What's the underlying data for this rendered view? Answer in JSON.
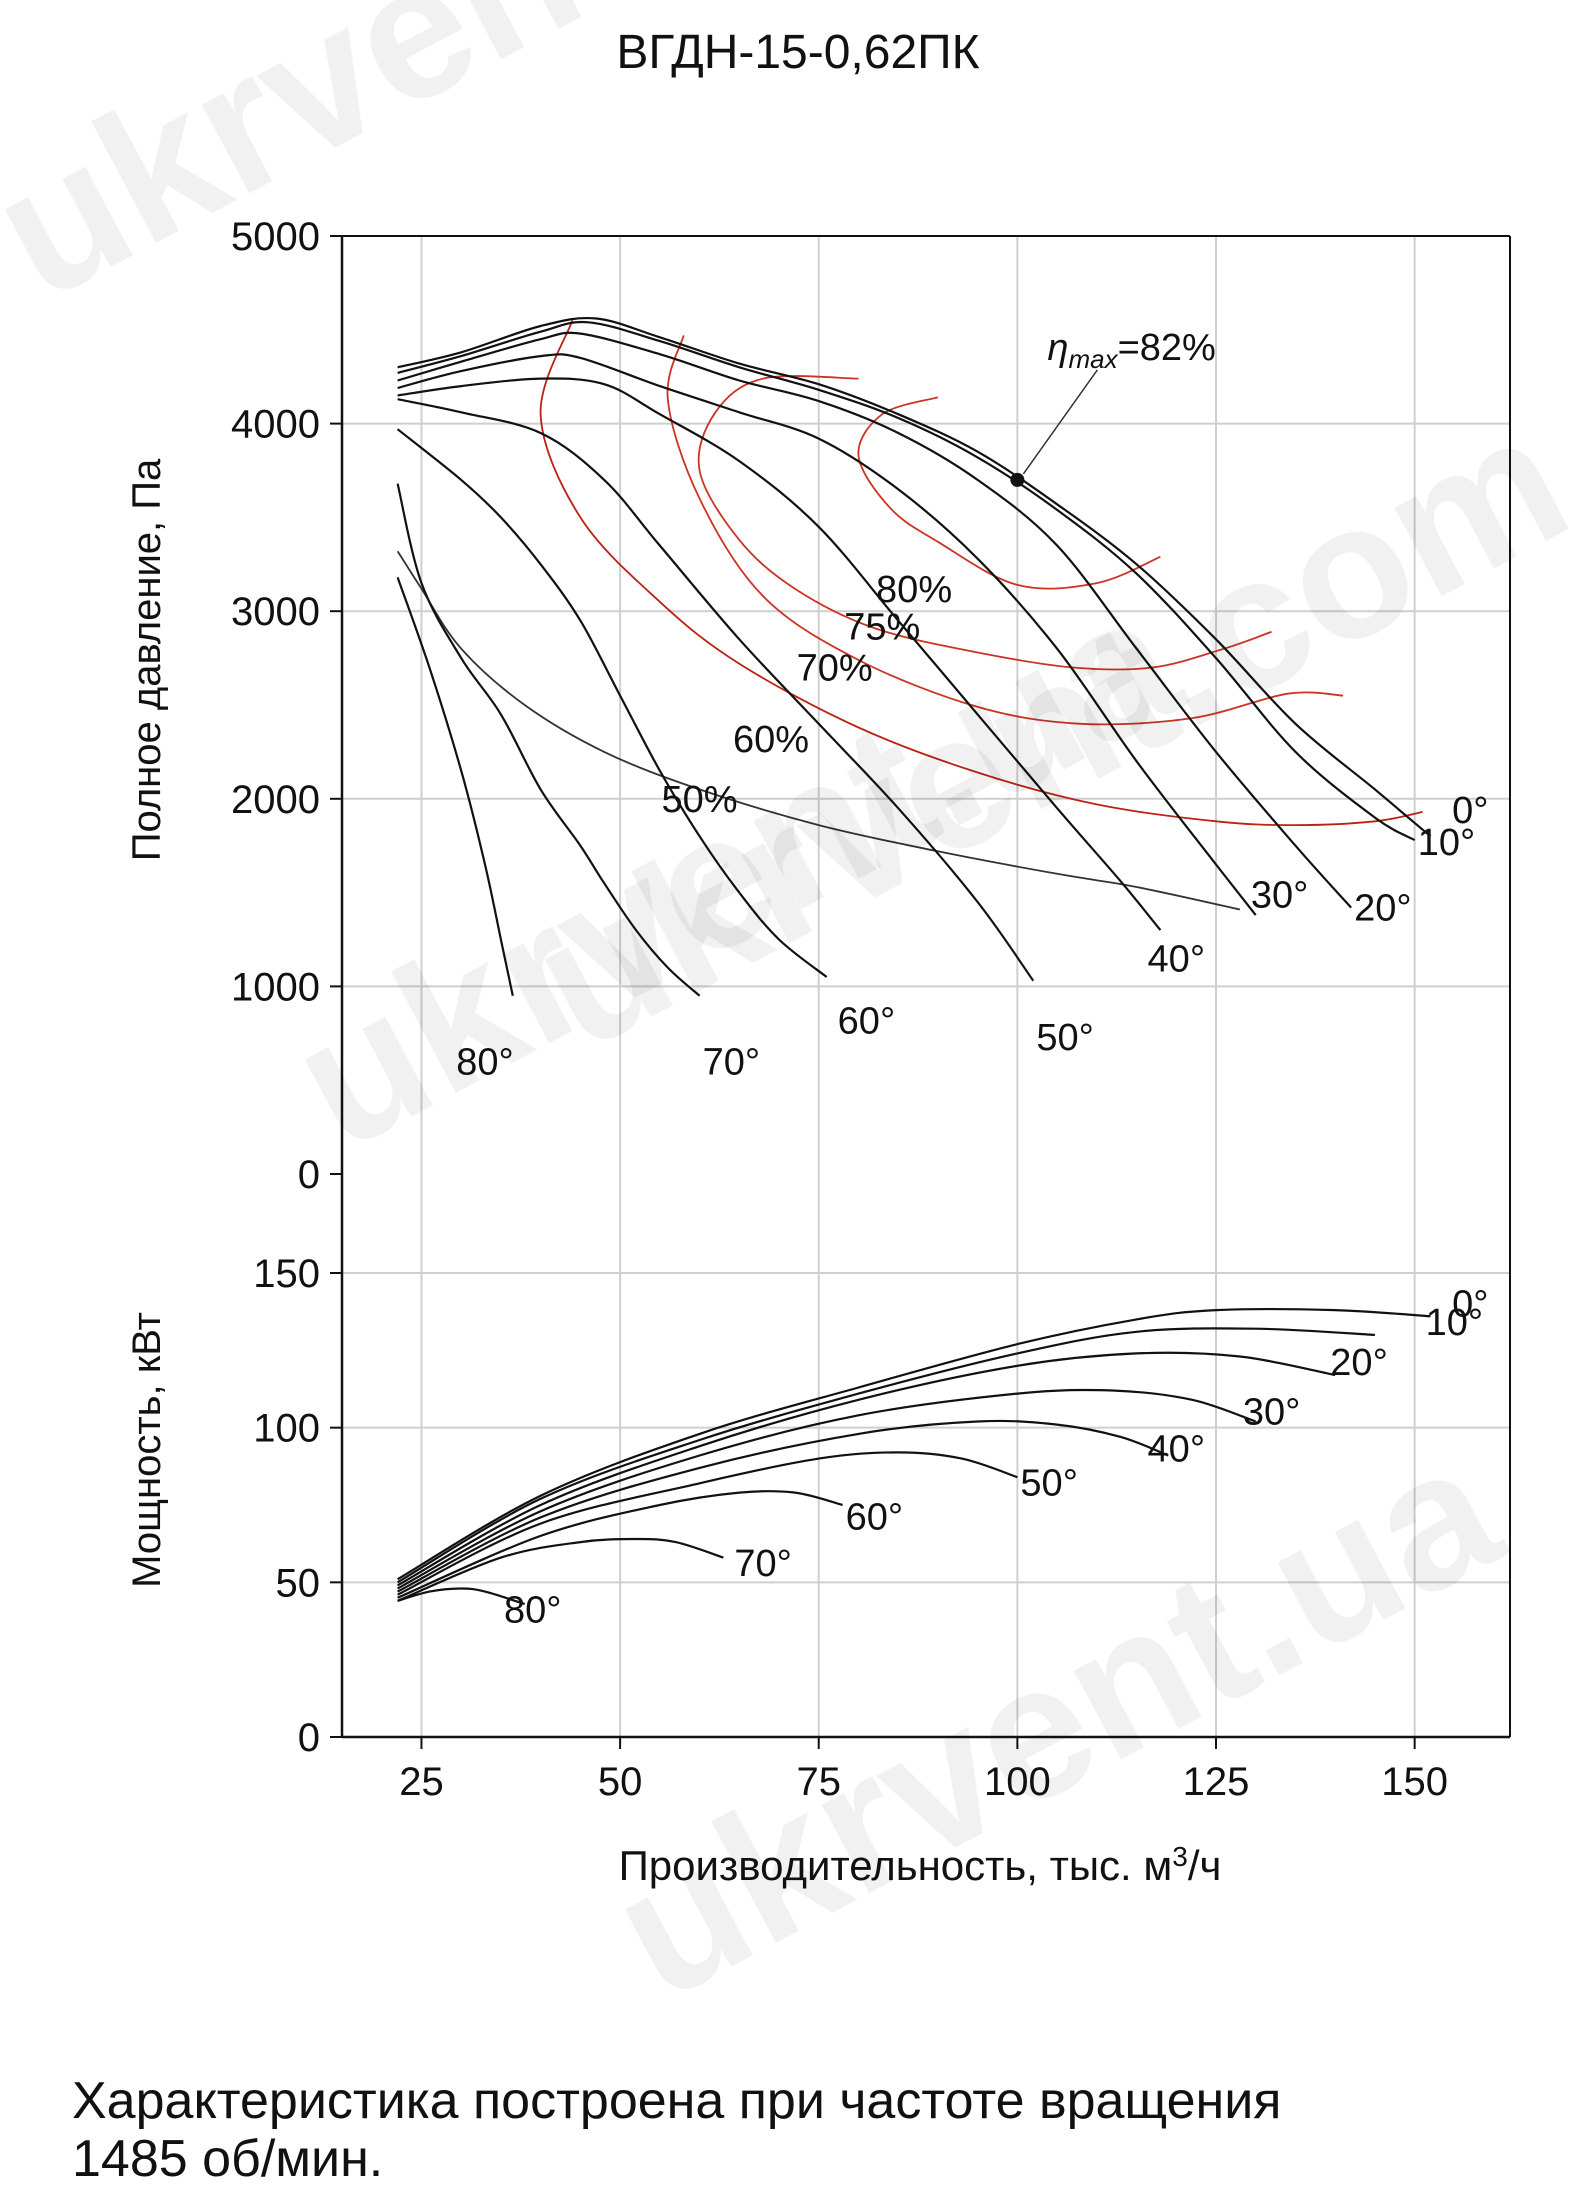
{
  "chart_data": [
    {
      "type": "line",
      "title": "ВГДН-15-0,62ПК",
      "ylabel": "Полное давление, Па",
      "xlim": [
        15,
        162
      ],
      "ylim": [
        0,
        5000
      ],
      "xticks": [
        25,
        50,
        75,
        100,
        125,
        150
      ],
      "yticks": [
        0,
        1000,
        2000,
        3000,
        4000,
        5000
      ],
      "grid": true,
      "annotation": {
        "label": "ηmax=82%",
        "point": [
          100,
          3700
        ]
      },
      "series": [
        {
          "name": "0°",
          "x": [
            22,
            30,
            40,
            47,
            55,
            65,
            75,
            85,
            95,
            105,
            115,
            125,
            135,
            145,
            152
          ],
          "y": [
            4300,
            4380,
            4520,
            4560,
            4460,
            4320,
            4210,
            4050,
            3850,
            3570,
            3250,
            2850,
            2400,
            2050,
            1800
          ]
        },
        {
          "name": "10°",
          "x": [
            22,
            30,
            40,
            46,
            55,
            65,
            75,
            85,
            95,
            105,
            115,
            125,
            135,
            145,
            150
          ],
          "y": [
            4270,
            4360,
            4490,
            4540,
            4440,
            4300,
            4180,
            4030,
            3820,
            3540,
            3200,
            2750,
            2250,
            1900,
            1780
          ]
        },
        {
          "name": "20°",
          "x": [
            22,
            30,
            40,
            45,
            55,
            65,
            75,
            85,
            95,
            105,
            115,
            125,
            135,
            142
          ],
          "y": [
            4230,
            4330,
            4450,
            4480,
            4370,
            4230,
            4120,
            3950,
            3700,
            3350,
            2800,
            2250,
            1750,
            1420
          ]
        },
        {
          "name": "30°",
          "x": [
            22,
            30,
            40,
            45,
            55,
            65,
            75,
            85,
            95,
            105,
            115,
            125,
            130
          ],
          "y": [
            4190,
            4280,
            4360,
            4350,
            4200,
            4060,
            3920,
            3650,
            3280,
            2800,
            2200,
            1650,
            1380
          ]
        },
        {
          "name": "40°",
          "x": [
            22,
            30,
            40,
            48,
            55,
            65,
            75,
            85,
            95,
            105,
            113,
            118
          ],
          "y": [
            4150,
            4200,
            4240,
            4210,
            4050,
            3800,
            3450,
            2950,
            2450,
            1950,
            1560,
            1300
          ]
        },
        {
          "name": "50°",
          "x": [
            22,
            30,
            40,
            48,
            55,
            65,
            75,
            85,
            95,
            102
          ],
          "y": [
            4130,
            4060,
            3950,
            3700,
            3350,
            2850,
            2400,
            1950,
            1450,
            1030
          ]
        },
        {
          "name": "60°",
          "x": [
            22,
            30,
            35,
            40,
            45,
            50,
            55,
            60,
            65,
            70,
            76
          ],
          "y": [
            3970,
            3700,
            3500,
            3250,
            2950,
            2550,
            2150,
            1800,
            1500,
            1250,
            1050
          ]
        },
        {
          "name": "70°",
          "x": [
            22,
            25,
            30,
            35,
            40,
            45,
            48,
            52,
            56,
            60
          ],
          "y": [
            3680,
            3150,
            2750,
            2450,
            2050,
            1750,
            1550,
            1300,
            1100,
            950
          ]
        },
        {
          "name": "80°",
          "x": [
            22,
            26,
            30,
            33,
            35,
            36.5
          ],
          "y": [
            3180,
            2700,
            2150,
            1650,
            1250,
            950
          ]
        }
      ],
      "efficiency_curves": [
        {
          "label": "80%",
          "color": "#cc3322",
          "x": [
            90,
            83,
            80,
            84,
            90,
            100,
            110,
            118
          ],
          "y": [
            4140,
            4050,
            3830,
            3550,
            3370,
            3140,
            3150,
            3290
          ]
        },
        {
          "label": "75%",
          "color": "#cc3322",
          "x": [
            80,
            68,
            62,
            60,
            65,
            72,
            82,
            95,
            107,
            117,
            126,
            132
          ],
          "y": [
            4240,
            4240,
            4060,
            3750,
            3380,
            3120,
            2910,
            2780,
            2700,
            2700,
            2800,
            2890
          ]
        },
        {
          "label": "70%",
          "color": "#cc3322",
          "x": [
            58,
            56,
            60,
            68,
            80,
            95,
            108,
            122,
            134,
            141
          ],
          "y": [
            4470,
            4130,
            3600,
            3080,
            2740,
            2490,
            2400,
            2430,
            2560,
            2550
          ]
        },
        {
          "label": "60%",
          "color": "#bb2211",
          "x": [
            44,
            40,
            45,
            55,
            65,
            80,
            95,
            110,
            125,
            135,
            145,
            151
          ],
          "y": [
            4550,
            4050,
            3500,
            3050,
            2720,
            2380,
            2140,
            1970,
            1880,
            1860,
            1880,
            1930
          ]
        },
        {
          "label": "50%",
          "color": "#333333",
          "x": [
            22,
            25,
            30,
            38,
            48,
            60,
            75,
            90,
            105,
            115,
            128
          ],
          "y": [
            3320,
            3120,
            2800,
            2500,
            2250,
            2050,
            1860,
            1720,
            1600,
            1530,
            1410
          ]
        }
      ]
    },
    {
      "type": "line",
      "ylabel": "Мощность, кВт",
      "xlabel": "Производительность, тыс. м3/ч",
      "xlim": [
        15,
        162
      ],
      "ylim": [
        0,
        150
      ],
      "xticks": [
        25,
        50,
        75,
        100,
        125,
        150
      ],
      "yticks": [
        0,
        50,
        100,
        150
      ],
      "grid": true,
      "series": [
        {
          "name": "0°",
          "x": [
            22,
            40,
            60,
            80,
            100,
            115,
            125,
            140,
            152
          ],
          "y": [
            51,
            78,
            98,
            113,
            127,
            135,
            138,
            138,
            136
          ]
        },
        {
          "name": "10°",
          "x": [
            22,
            40,
            60,
            80,
            100,
            115,
            130,
            145
          ],
          "y": [
            50,
            77,
            96,
            111,
            124,
            131,
            132,
            130
          ]
        },
        {
          "name": "20°",
          "x": [
            22,
            40,
            60,
            80,
            100,
            115,
            128,
            140
          ],
          "y": [
            49,
            75,
            94,
            109,
            120,
            124,
            123,
            117
          ]
        },
        {
          "name": "30°",
          "x": [
            22,
            40,
            60,
            80,
            100,
            112,
            122,
            130
          ],
          "y": [
            48,
            73,
            91,
            104,
            111,
            112,
            109,
            102
          ]
        },
        {
          "name": "40°",
          "x": [
            22,
            40,
            60,
            80,
            95,
            105,
            113,
            119
          ],
          "y": [
            47,
            71,
            87,
            98,
            102,
            101,
            97,
            91
          ]
        },
        {
          "name": "50°",
          "x": [
            22,
            40,
            60,
            75,
            85,
            93,
            100
          ],
          "y": [
            46,
            69,
            82,
            90,
            92,
            90,
            84
          ]
        },
        {
          "name": "60°",
          "x": [
            22,
            40,
            55,
            65,
            72,
            78
          ],
          "y": [
            45,
            65,
            75,
            79,
            79,
            75
          ]
        },
        {
          "name": "70°",
          "x": [
            22,
            35,
            45,
            52,
            57,
            63
          ],
          "y": [
            44,
            58,
            63,
            64,
            63,
            58
          ]
        },
        {
          "name": "80°",
          "x": [
            22,
            26,
            30,
            33,
            38
          ],
          "y": [
            44,
            47,
            48,
            47,
            43
          ]
        }
      ]
    }
  ],
  "footnote": {
    "line1": "Характеристика построена при частоте вращения",
    "line2": "1485 об/мин."
  },
  "watermark": {
    "text": "ukrvent.ua",
    "alt": "ukrvent.com"
  }
}
